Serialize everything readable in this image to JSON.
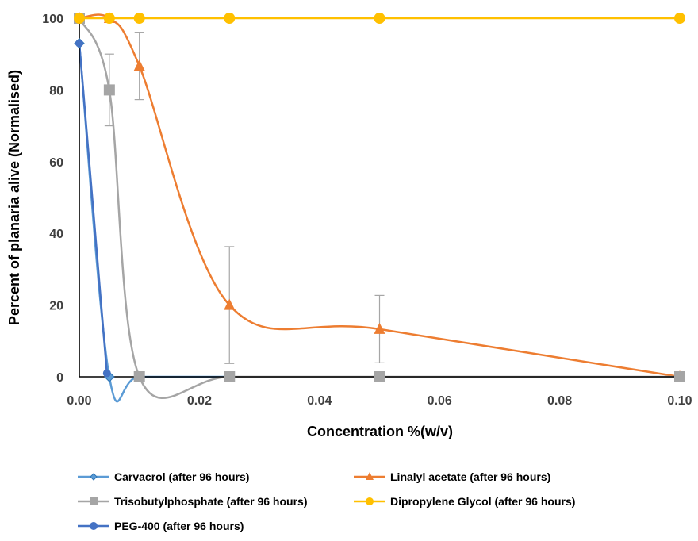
{
  "chart_data": {
    "type": "scatter",
    "xlabel": "Concentration %(w/v)",
    "ylabel": "Percent of planaria alive (Normalised)",
    "xlim": [
      0,
      0.1
    ],
    "ylim": [
      0,
      100
    ],
    "x_ticks": [
      "0.00",
      "0.02",
      "0.04",
      "0.06",
      "0.08",
      "0.10"
    ],
    "y_ticks": [
      "0",
      "20",
      "40",
      "60",
      "80",
      "100"
    ],
    "grid": false,
    "smooth_lines": true,
    "legend_position": "bottom",
    "series": [
      {
        "name": "Carvacrol (after 96 hours)",
        "color": "#5b9bd5",
        "marker": "diamond",
        "points": [
          {
            "x": 0.0,
            "y": 93
          },
          {
            "x": 0.005,
            "y": 0
          },
          {
            "x": 0.01,
            "y": 0
          },
          {
            "x": 0.025,
            "y": 0
          }
        ]
      },
      {
        "name": "Linalyl acetate (after 96 hours)",
        "color": "#ed7d31",
        "marker": "triangle",
        "points": [
          {
            "x": 0.0,
            "y": 100
          },
          {
            "x": 0.005,
            "y": 100
          },
          {
            "x": 0.01,
            "y": 86.7,
            "err": 9.4
          },
          {
            "x": 0.025,
            "y": 20,
            "err": 16.3
          },
          {
            "x": 0.05,
            "y": 13.3,
            "err": 9.4
          },
          {
            "x": 0.1,
            "y": 0
          }
        ]
      },
      {
        "name": "Trisobutylphosphate (after 96 hours)",
        "color": "#a5a5a5",
        "marker": "square",
        "points": [
          {
            "x": 0.0,
            "y": 100
          },
          {
            "x": 0.005,
            "y": 80,
            "err": 10
          },
          {
            "x": 0.01,
            "y": 0
          },
          {
            "x": 0.025,
            "y": 0
          },
          {
            "x": 0.05,
            "y": 0
          },
          {
            "x": 0.1,
            "y": 0
          }
        ]
      },
      {
        "name": "Dipropylene Glycol (after 96 hours)",
        "color": "#ffc000",
        "marker": "circle",
        "points": [
          {
            "x": 0.0,
            "y": 100
          },
          {
            "x": 0.005,
            "y": 100
          },
          {
            "x": 0.01,
            "y": 100
          },
          {
            "x": 0.025,
            "y": 100
          },
          {
            "x": 0.05,
            "y": 100
          },
          {
            "x": 0.1,
            "y": 100
          }
        ]
      },
      {
        "name": "PEG-400 (after 96 hours)",
        "color": "#4472c4",
        "marker": "circle",
        "points": [
          {
            "x": 0.0,
            "y": 93
          },
          {
            "x": 0.0046,
            "y": 1
          }
        ]
      }
    ]
  }
}
